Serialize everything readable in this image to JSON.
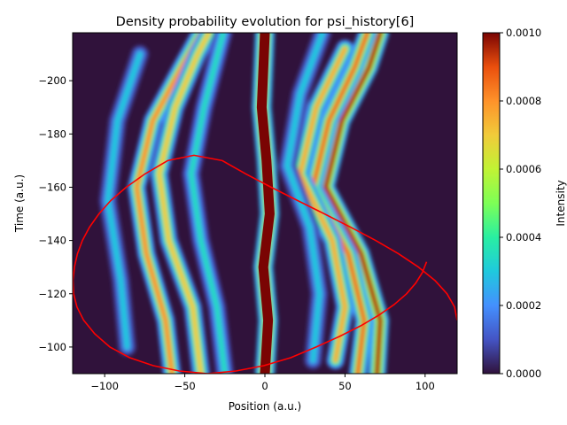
{
  "chart_data": {
    "type": "heatmap",
    "title": "Density probability evolution for psi_history[6]",
    "xlabel": "Position (a.u.)",
    "ylabel": "Time (a.u.)",
    "xlim": [
      -120,
      120
    ],
    "ylim": [
      -90,
      -218
    ],
    "y_axis_inverted": true,
    "x_ticks": [
      -100,
      -50,
      0,
      50,
      100
    ],
    "x_tick_labels": [
      "−100",
      "−50",
      "0",
      "50",
      "100"
    ],
    "y_ticks": [
      -100,
      -120,
      -140,
      -160,
      -180,
      -200
    ],
    "y_tick_labels": [
      "−100",
      "−120",
      "−140",
      "−160",
      "−180",
      "−200"
    ],
    "colormap": "turbo",
    "background_color": "#30123b",
    "colorbar": {
      "label": "Intensity",
      "vmin": 0.0,
      "vmax": 0.001,
      "ticks": [
        0.0,
        0.0002,
        0.0004,
        0.0006,
        0.0008,
        0.001
      ],
      "tick_labels": [
        "0.0000",
        "0.0002",
        "0.0004",
        "0.0006",
        "0.0008",
        "0.0010"
      ]
    },
    "density_bands": [
      {
        "name": "central",
        "level": 1.0,
        "points": [
          [
            0,
            -90
          ],
          [
            2,
            -110
          ],
          [
            -1,
            -130
          ],
          [
            3,
            -150
          ],
          [
            1,
            -170
          ],
          [
            -2,
            -190
          ],
          [
            0,
            -218
          ]
        ]
      },
      {
        "name": "left-1",
        "level": 0.8,
        "points": [
          [
            -58,
            -90
          ],
          [
            -62,
            -110
          ],
          [
            -74,
            -135
          ],
          [
            -80,
            -160
          ],
          [
            -70,
            -185
          ],
          [
            -52,
            -205
          ],
          [
            -40,
            -218
          ]
        ]
      },
      {
        "name": "left-2",
        "level": 0.7,
        "points": [
          [
            -40,
            -90
          ],
          [
            -45,
            -115
          ],
          [
            -60,
            -140
          ],
          [
            -66,
            -165
          ],
          [
            -56,
            -190
          ],
          [
            -42,
            -210
          ],
          [
            -35,
            -218
          ]
        ]
      },
      {
        "name": "left-3",
        "level": 0.35,
        "points": [
          [
            -25,
            -90
          ],
          [
            -30,
            -115
          ],
          [
            -40,
            -140
          ],
          [
            -46,
            -165
          ],
          [
            -38,
            -190
          ],
          [
            -26,
            -218
          ]
        ]
      },
      {
        "name": "left-4",
        "level": 0.3,
        "points": [
          [
            -86,
            -100
          ],
          [
            -90,
            -125
          ],
          [
            -98,
            -155
          ],
          [
            -92,
            -185
          ],
          [
            -78,
            -210
          ]
        ]
      },
      {
        "name": "right-1",
        "level": 0.95,
        "points": [
          [
            70,
            -90
          ],
          [
            72,
            -110
          ],
          [
            60,
            -135
          ],
          [
            38,
            -160
          ],
          [
            48,
            -185
          ],
          [
            65,
            -205
          ],
          [
            72,
            -218
          ]
        ]
      },
      {
        "name": "right-2",
        "level": 0.85,
        "points": [
          [
            58,
            -90
          ],
          [
            62,
            -110
          ],
          [
            52,
            -135
          ],
          [
            30,
            -160
          ],
          [
            40,
            -185
          ],
          [
            56,
            -205
          ],
          [
            64,
            -218
          ]
        ]
      },
      {
        "name": "right-3",
        "level": 0.75,
        "points": [
          [
            44,
            -95
          ],
          [
            50,
            -115
          ],
          [
            42,
            -140
          ],
          [
            22,
            -165
          ],
          [
            32,
            -190
          ],
          [
            50,
            -212
          ]
        ]
      },
      {
        "name": "right-4",
        "level": 0.3,
        "points": [
          [
            30,
            -95
          ],
          [
            34,
            -120
          ],
          [
            28,
            -145
          ],
          [
            14,
            -168
          ],
          [
            22,
            -195
          ],
          [
            36,
            -218
          ]
        ]
      }
    ],
    "series": [
      {
        "color": "#ff0000",
        "x": [
          120.0,
          118.4,
          113.7,
          106.1,
          95.9,
          83.4,
          69.1,
          53.5,
          37.1,
          20.4,
          3.9,
          -11.9,
          -26.6,
          -44.3,
          -60.7,
          -74.8,
          -86.6,
          -96.2,
          -103.6,
          -109.5,
          -113.9,
          -117.0,
          -118.9,
          -119.8,
          -119.4,
          -117.3,
          -113.1,
          -106.3,
          -96.8,
          -84.4,
          -69.6,
          -53.4,
          -35.7,
          -18.0,
          -0.7,
          16.1,
          32.0,
          46.7,
          59.9,
          71.2,
          80.8,
          88.4,
          94.2,
          98.3,
          100.9
        ],
        "y": [
          -110,
          -115,
          -120,
          -125,
          -130,
          -135,
          -140,
          -145,
          -150,
          -155,
          -160,
          -165,
          -170,
          -172,
          -170,
          -165,
          -160,
          -155,
          -150,
          -145,
          -140,
          -135,
          -130,
          -125,
          -120,
          -115,
          -110,
          -105,
          -100,
          -96,
          -93,
          -91,
          -90,
          -91,
          -93,
          -96,
          -100,
          -104,
          -108,
          -112,
          -116,
          -120,
          -124,
          -128,
          -132
        ]
      }
    ]
  }
}
